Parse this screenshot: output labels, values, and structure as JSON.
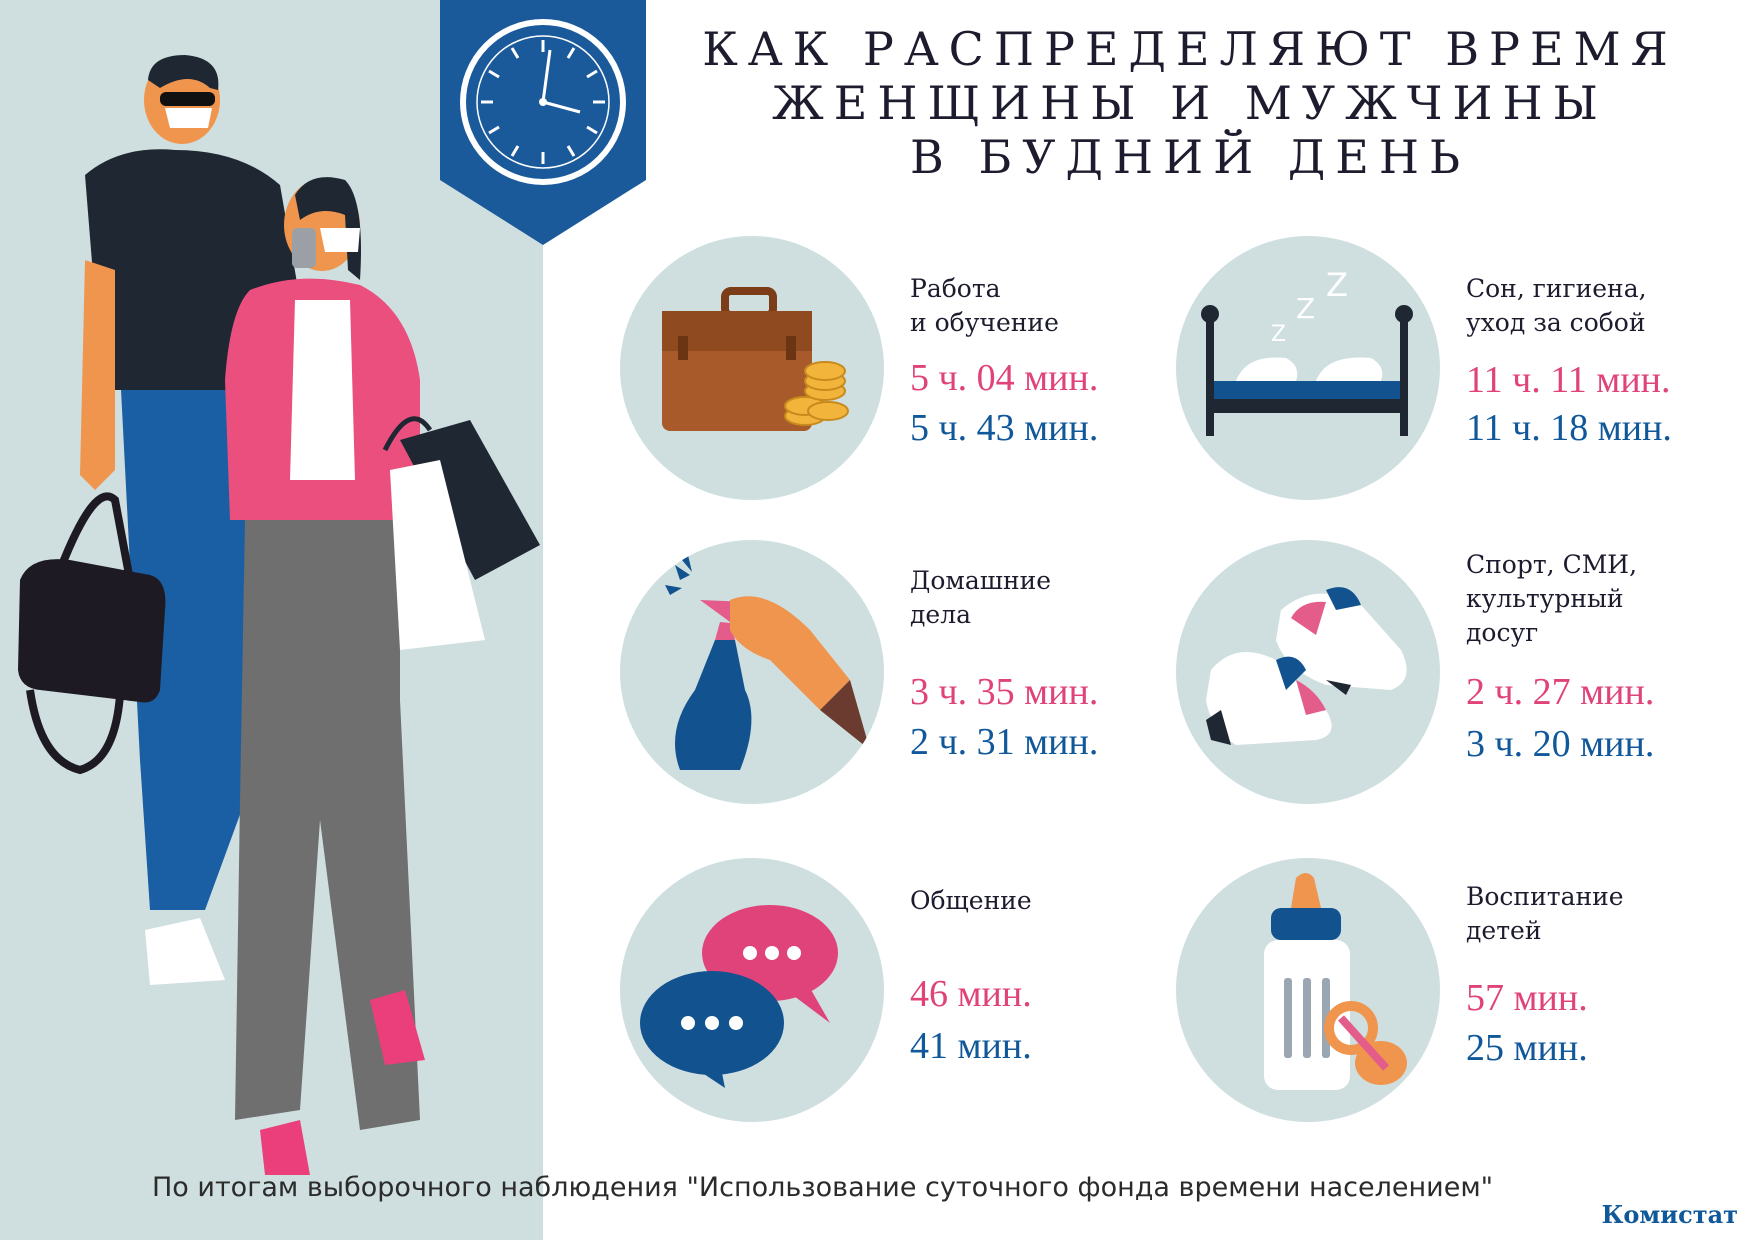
{
  "title": {
    "line1": "КАК РАСПРЕДЕЛЯЮТ ВРЕМЯ",
    "line2": "ЖЕНЩИНЫ И МУЖЧИНЫ",
    "line3": "В БУДНИЙ ДЕНЬ"
  },
  "colors": {
    "women": "#e0427a",
    "men": "#10589a",
    "panel": "#cfdfe0",
    "banner": "#1a5a9b"
  },
  "icons": [
    "clock-icon",
    "briefcase-icon",
    "bed-icon",
    "spray-bottle-icon",
    "sneakers-icon",
    "chat-bubbles-icon",
    "baby-bottle-icon",
    "people-illustration"
  ],
  "categories": [
    {
      "label": "Работа\nи обучение",
      "women": "5 ч. 04 мин.",
      "men": "5 ч. 43 мин."
    },
    {
      "label": "Сон, гигиена,\nуход за собой",
      "women": "11 ч. 11 мин.",
      "men": "11 ч. 18 мин."
    },
    {
      "label": "Домашние\nдела",
      "women": "3 ч. 35 мин.",
      "men": "2 ч. 31 мин."
    },
    {
      "label": "Спорт, СМИ,\nкультурный\nдосуг",
      "women": "2 ч. 27 мин.",
      "men": "3 ч. 20 мин."
    },
    {
      "label": "Общение",
      "women": "46 мин.",
      "men": "41 мин."
    },
    {
      "label": "Воспитание\nдетей",
      "women": "57 мин.",
      "men": "25 мин."
    }
  ],
  "footer": {
    "note": "По итогам выборочного наблюдения \"Использование суточного фонда времени населением\"",
    "brand": "Комистат"
  }
}
